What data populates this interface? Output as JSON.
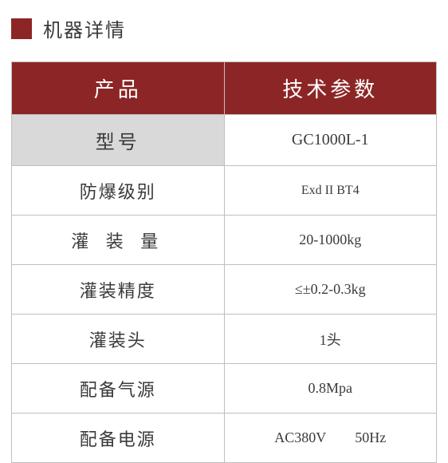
{
  "title": "机器详情",
  "colors": {
    "accent": "#8c2626",
    "header_bg": "#8c2626",
    "header_text": "#ffffff",
    "border": "#bfbfbf",
    "model_row_bg": "#d9d9d9",
    "text": "#3a3a3a",
    "background": "#ffffff"
  },
  "table": {
    "columns": [
      "产品",
      "技术参数"
    ],
    "rows": [
      {
        "label": "型号",
        "value": "GC1000L-1",
        "highlighted": true,
        "label_fontsize": 24,
        "value_fontsize": 20
      },
      {
        "label": "防爆级别",
        "value": "Exd II BT4",
        "value_fontsize": 16
      },
      {
        "label": "灌 装 量",
        "value": "20-1000kg",
        "spaced": true
      },
      {
        "label": "灌装精度",
        "value": "≤±0.2-0.3kg"
      },
      {
        "label": "灌装头",
        "value": "1头"
      },
      {
        "label": "配备气源",
        "value": "0.8Mpa"
      },
      {
        "label": "配备电源",
        "value": "AC380V  50Hz"
      }
    ]
  }
}
